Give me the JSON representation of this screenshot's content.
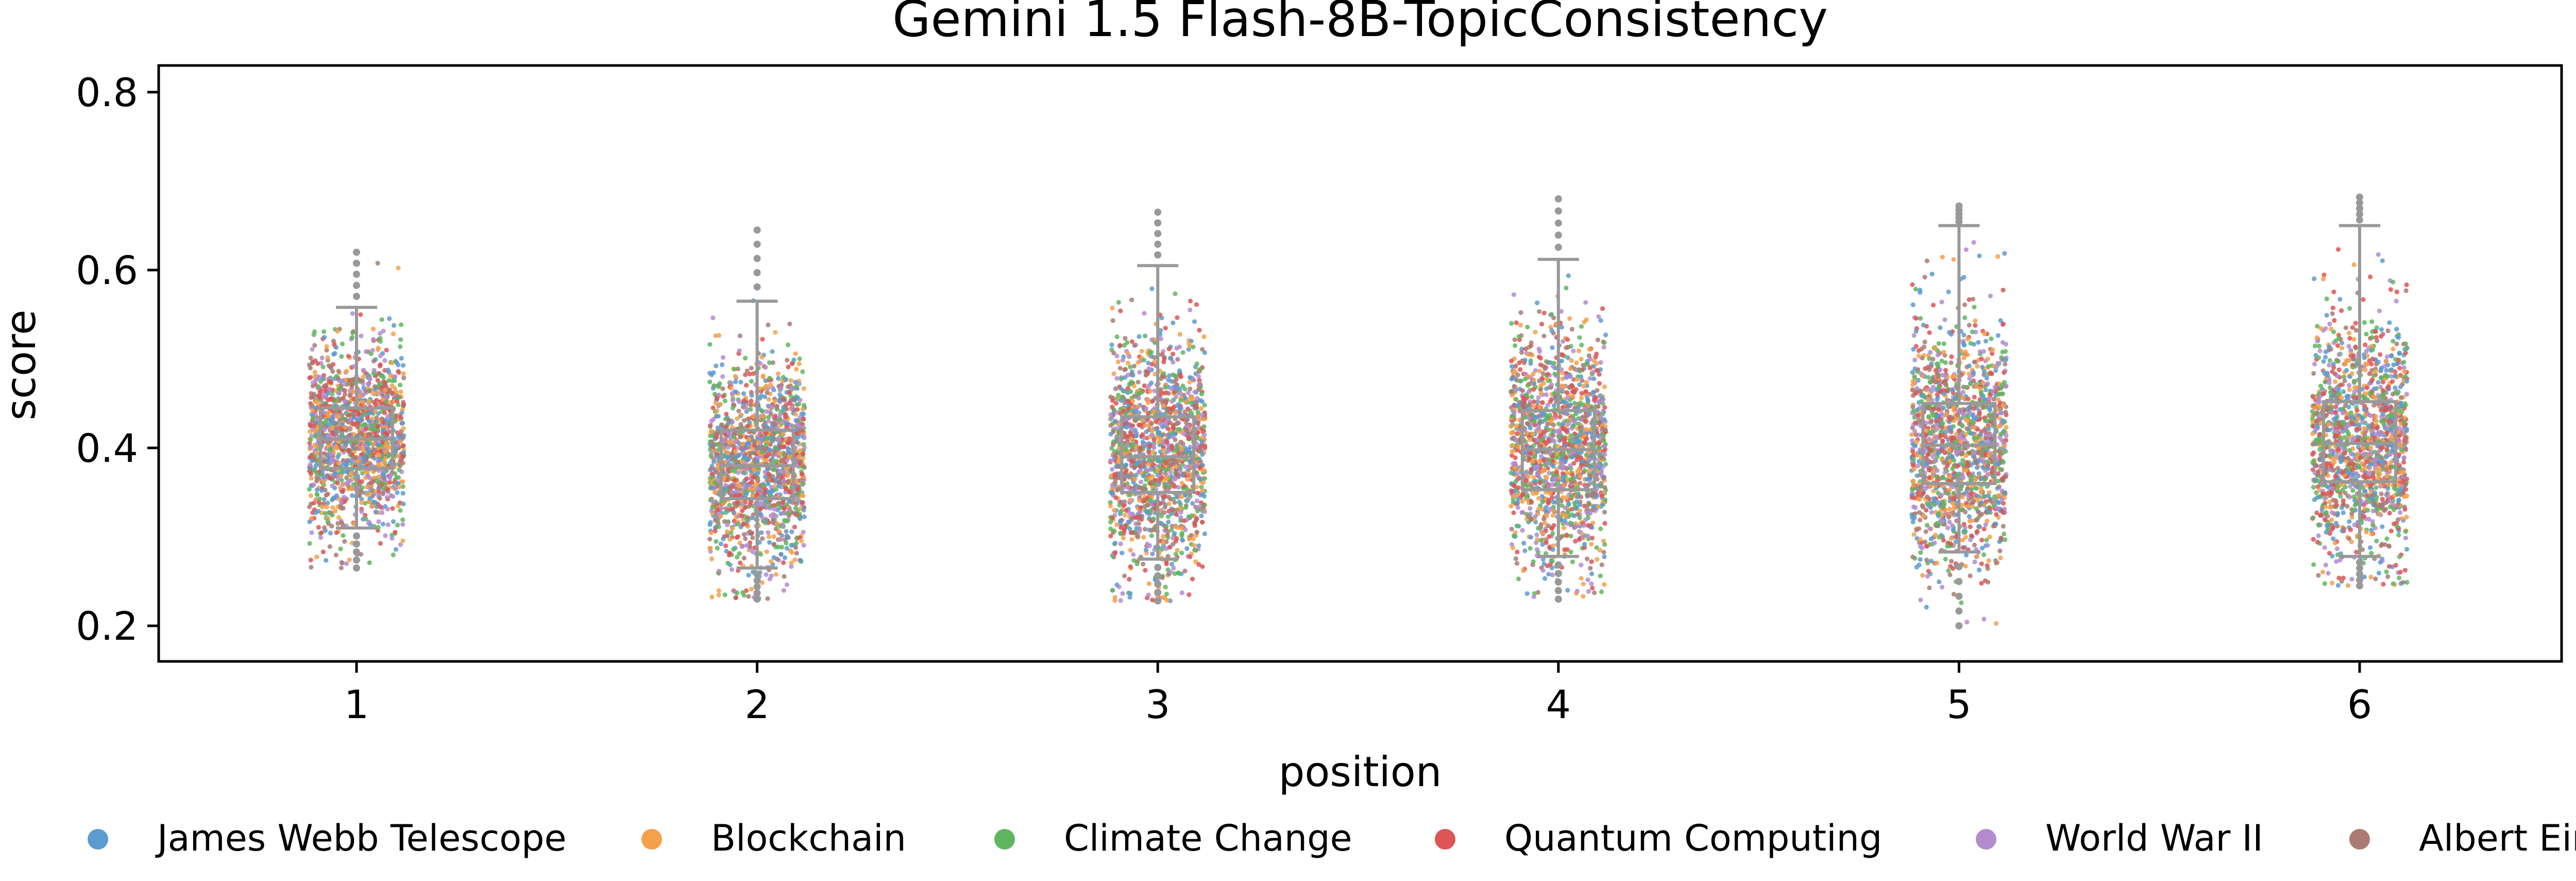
{
  "chart_data": {
    "type": "box+strip",
    "title": "Gemini 1.5 Flash-8B-TopicConsistency",
    "xlabel": "position",
    "ylabel": "score",
    "categories": [
      "1",
      "2",
      "3",
      "4",
      "5",
      "6"
    ],
    "ylim": [
      0.16,
      0.83
    ],
    "yticks": [
      0.2,
      0.4,
      0.6,
      0.8
    ],
    "ytick_labels": [
      "0.2",
      "0.4",
      "0.6",
      "0.8"
    ],
    "grid": false,
    "legend_placement": "bottom",
    "box_color": "#999999",
    "series": [
      {
        "name": "James Webb Telescope",
        "color": "#5b9bd0"
      },
      {
        "name": "Blockchain",
        "color": "#f5a04a"
      },
      {
        "name": "Climate Change",
        "color": "#5fb65f"
      },
      {
        "name": "Quantum Computing",
        "color": "#dd5555"
      },
      {
        "name": "World War II",
        "color": "#b38cd0"
      },
      {
        "name": "Albert Einstein",
        "color": "#a97b73"
      }
    ],
    "boxes": [
      {
        "position": "1",
        "whisker_low": 0.31,
        "q1": 0.377,
        "median": 0.41,
        "q3": 0.445,
        "whisker_high": 0.558,
        "min": 0.265,
        "max": 0.62
      },
      {
        "position": "2",
        "whisker_low": 0.265,
        "q1": 0.343,
        "median": 0.38,
        "q3": 0.42,
        "whisker_high": 0.565,
        "min": 0.23,
        "max": 0.645
      },
      {
        "position": "3",
        "whisker_low": 0.275,
        "q1": 0.35,
        "median": 0.39,
        "q3": 0.435,
        "whisker_high": 0.605,
        "min": 0.228,
        "max": 0.665
      },
      {
        "position": "4",
        "whisker_low": 0.278,
        "q1": 0.353,
        "median": 0.398,
        "q3": 0.442,
        "whisker_high": 0.612,
        "min": 0.23,
        "max": 0.68
      },
      {
        "position": "5",
        "whisker_low": 0.283,
        "q1": 0.36,
        "median": 0.403,
        "q3": 0.45,
        "whisker_high": 0.65,
        "min": 0.2,
        "max": 0.672
      },
      {
        "position": "6",
        "whisker_low": 0.278,
        "q1": 0.362,
        "median": 0.405,
        "q3": 0.452,
        "whisker_high": 0.65,
        "min": 0.245,
        "max": 0.682
      }
    ]
  }
}
